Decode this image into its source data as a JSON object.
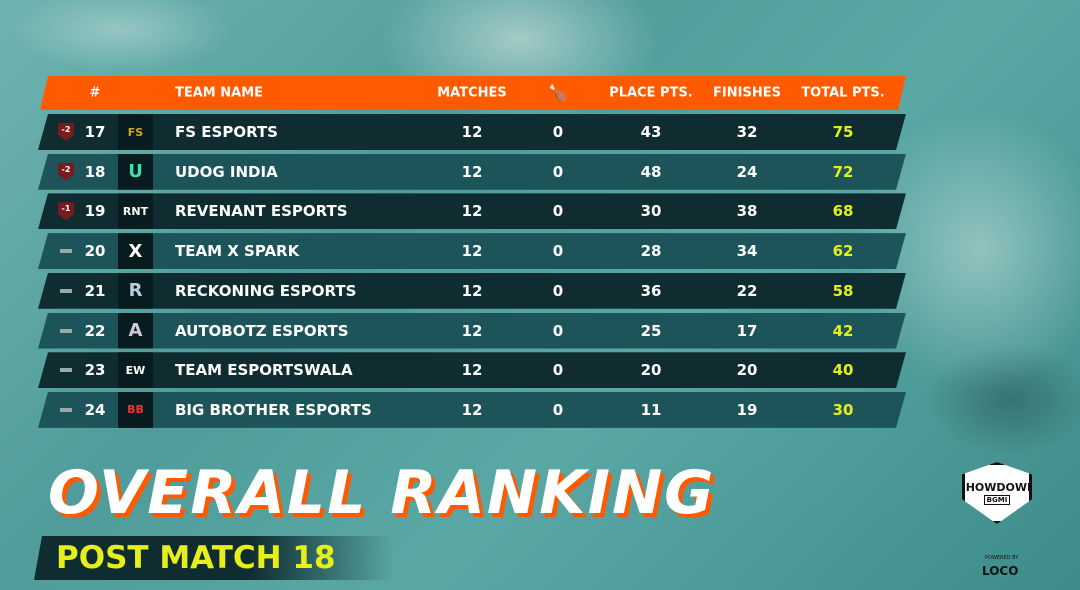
{
  "header": {
    "rank": "#",
    "team": "TEAM NAME",
    "matches": "MATCHES",
    "chicken_icon": "chicken-dinner-icon",
    "place": "PLACE PTS.",
    "finishes": "FINISHES",
    "total": "TOTAL PTS."
  },
  "rows": [
    {
      "change": "-2",
      "rank": "17",
      "logo": "FS",
      "team": "FS ESPORTS",
      "matches": "12",
      "wins": "0",
      "place": "43",
      "finishes": "32",
      "total": "75"
    },
    {
      "change": "-2",
      "rank": "18",
      "logo": "U",
      "team": "UDOG INDIA",
      "matches": "12",
      "wins": "0",
      "place": "48",
      "finishes": "24",
      "total": "72"
    },
    {
      "change": "-1",
      "rank": "19",
      "logo": "RNT",
      "team": "REVENANT ESPORTS",
      "matches": "12",
      "wins": "0",
      "place": "30",
      "finishes": "38",
      "total": "68"
    },
    {
      "change": "",
      "rank": "20",
      "logo": "X",
      "team": "TEAM X SPARK",
      "matches": "12",
      "wins": "0",
      "place": "28",
      "finishes": "34",
      "total": "62"
    },
    {
      "change": "",
      "rank": "21",
      "logo": "R",
      "team": "RECKONING ESPORTS",
      "matches": "12",
      "wins": "0",
      "place": "36",
      "finishes": "22",
      "total": "58"
    },
    {
      "change": "",
      "rank": "22",
      "logo": "A",
      "team": "AUTOBOTZ ESPORTS",
      "matches": "12",
      "wins": "0",
      "place": "25",
      "finishes": "17",
      "total": "42"
    },
    {
      "change": "",
      "rank": "23",
      "logo": "EW",
      "team": "TEAM ESPORTSWALA",
      "matches": "12",
      "wins": "0",
      "place": "20",
      "finishes": "20",
      "total": "40"
    },
    {
      "change": "",
      "rank": "24",
      "logo": "BB",
      "team": "BIG BROTHER ESPORTS",
      "matches": "12",
      "wins": "0",
      "place": "11",
      "finishes": "19",
      "total": "30"
    }
  ],
  "title": "OVERALL RANKING",
  "subtitle": "POST MATCH 18",
  "brand": {
    "event": "SHOWDOWN",
    "game": "BGMI",
    "powered": "POWERED BY",
    "sponsor": "LOCO"
  },
  "colors": {
    "accent": "#ff5a00",
    "highlight": "#e6ef1a"
  }
}
